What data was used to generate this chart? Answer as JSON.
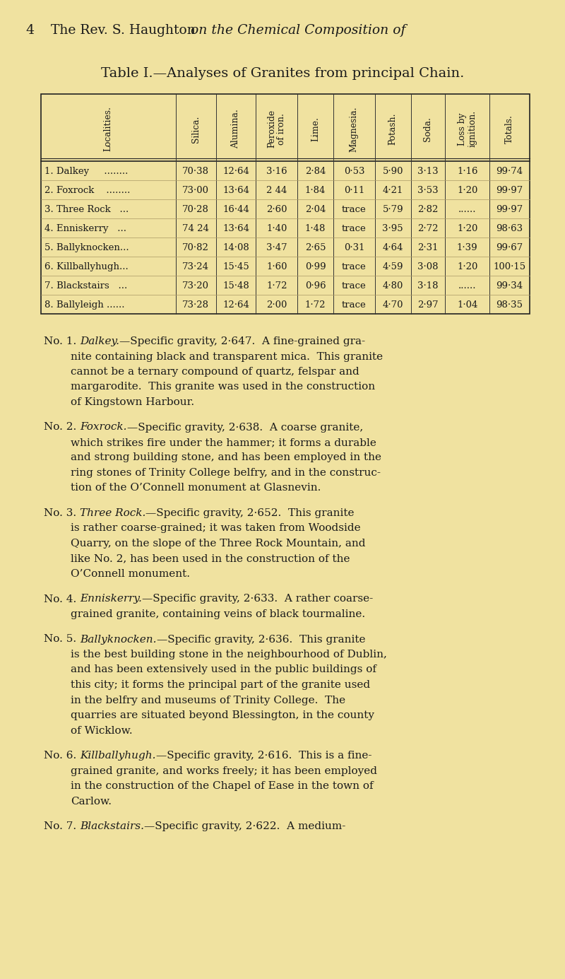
{
  "bg_color": "#f0e2a0",
  "page_number": "4",
  "header_normal": "The Rev. S. Haughton ",
  "header_italic": "on the Chemical Composition of",
  "table_title": "Table I.—Analyses of Granites from principal Chain.",
  "col_headers": [
    "Localities.",
    "Silica.",
    "Alumina.",
    "Peroxide\nof iron.",
    "Lime.",
    "Magnesia.",
    "Potash.",
    "Soda.",
    "Loss by\nignition.",
    "Totals."
  ],
  "rows": [
    [
      "1. Dalkey     ........",
      "70·38",
      "12·64",
      "3·16",
      "2·84",
      "0·53",
      "5·90",
      "3·13",
      "1·16",
      "99·74"
    ],
    [
      "2. Foxrock    ........",
      "73·00",
      "13·64",
      "2 44",
      "1·84",
      "0·11",
      "4·21",
      "3·53",
      "1·20",
      "99·97"
    ],
    [
      "3. Three Rock   ...",
      "70·28",
      "16·44",
      "2·60",
      "2·04",
      "trace",
      "5·79",
      "2·82",
      "......",
      "99·97"
    ],
    [
      "4. Enniskerry   ...",
      "74 24",
      "13·64",
      "1·40",
      "1·48",
      "trace",
      "3·95",
      "2·72",
      "1·20",
      "98·63"
    ],
    [
      "5. Ballyknocken...",
      "70·82",
      "14·08",
      "3·47",
      "2·65",
      "0·31",
      "4·64",
      "2·31",
      "1·39",
      "99·67"
    ],
    [
      "6. Killballyhugh...",
      "73·24",
      "15·45",
      "1·60",
      "0·99",
      "trace",
      "4·59",
      "3·08",
      "1·20",
      "100·15"
    ],
    [
      "7. Blackstairs   ...",
      "73·20",
      "15·48",
      "1·72",
      "0·96",
      "trace",
      "4·80",
      "3·18",
      "......",
      "99·34"
    ],
    [
      "8. Ballyleigh ......",
      "73·28",
      "12·64",
      "2·00",
      "1·72",
      "trace",
      "4·70",
      "2·97",
      "1·04",
      "98·35"
    ]
  ],
  "paragraphs": [
    {
      "label": "No. 1. ",
      "italic_part": "Dalkey.",
      "rest": "—Specific gravity, 2·647.  A fine-grained gra-\nnite containing black and transparent mica.  This granite\ncannot be a ternary compound of quartz, felspar and\nmargarodite.  This granite was used in the construction\nof Kingstown Harbour."
    },
    {
      "label": "No. 2. ",
      "italic_part": "Foxrock.",
      "rest": "—Specific gravity, 2·638.  A coarse granite,\nwhich strikes fire under the hammer; it forms a durable\nand strong building stone, and has been employed in the\nring stones of Trinity College belfry, and in the construc-\ntion of the O’Connell monument at Glasnevin."
    },
    {
      "label": "No. 3. ",
      "italic_part": "Three Rock.",
      "rest": "—Specific gravity, 2·652.  This granite\nis rather coarse-grained; it was taken from Woodside\nQuarry, on the slope of the Three Rock Mountain, and\nlike No. 2, has been used in the construction of the\nO’Connell monument."
    },
    {
      "label": "No. 4. ",
      "italic_part": "Enniskerry.",
      "rest": "—Specific gravity, 2·633.  A rather coarse-\ngrained granite, containing veins of black tourmaline."
    },
    {
      "label": "No. 5. ",
      "italic_part": "Ballyknocken.",
      "rest": "—Specific gravity, 2·636.  This granite\nis the best building stone in the neighbourhood of Dublin,\nand has been extensively used in the public buildings of\nthis city; it forms the principal part of the granite used\nin the belfry and museums of Trinity College.  The\nquarries are situated beyond Blessington, in the county\nof Wicklow."
    },
    {
      "label": "No. 6. ",
      "italic_part": "Killballyhugh.",
      "rest": "—Specific gravity, 2·616.  This is a fine-\ngrained granite, and works freely; it has been employed\nin the construction of the Chapel of Ease in the town of\nCarlow."
    },
    {
      "label": "No. 7. ",
      "italic_part": "Blackstairs.",
      "rest": "—Specific gravity, 2·622.  A medium-"
    }
  ]
}
